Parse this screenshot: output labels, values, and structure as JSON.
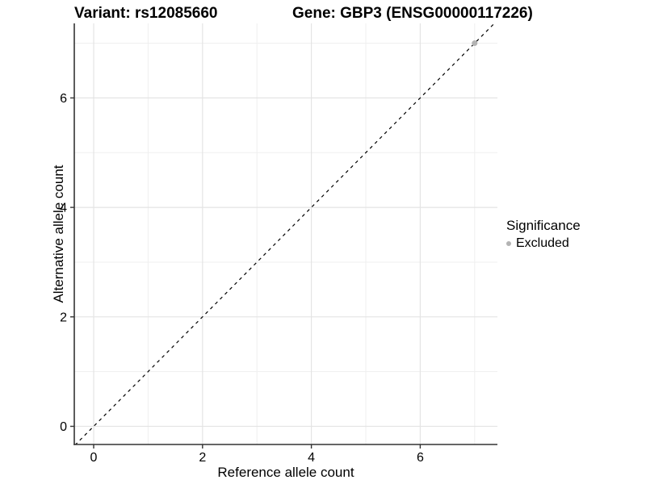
{
  "header": {
    "variant_title": "Variant: rs12085660",
    "gene_title": "Gene: GBP3 (ENSG00000117226)"
  },
  "axes": {
    "x": {
      "label": "Reference allele count",
      "tick_labels": [
        "0",
        "2",
        "4",
        "6"
      ]
    },
    "y": {
      "label": "Alternative allele count",
      "tick_labels": [
        "0",
        "2",
        "4",
        "6"
      ]
    }
  },
  "legend": {
    "title": "Significance",
    "items": [
      {
        "label": "Excluded",
        "marker_color": "#B3B3B3"
      }
    ]
  },
  "chart_data": {
    "type": "scatter",
    "title_left": "Variant: rs12085660",
    "title_right": "Gene: GBP3 (ENSG00000117226)",
    "xlabel": "Reference allele count",
    "ylabel": "Alternative allele count",
    "xlim": [
      -0.35,
      7.45
    ],
    "ylim": [
      -0.37,
      7.35
    ],
    "x_major_ticks": [
      0,
      2,
      4,
      6
    ],
    "y_major_ticks": [
      0,
      2,
      4,
      6
    ],
    "x_minor_gridlines": [
      1,
      3,
      5,
      7
    ],
    "y_minor_gridlines": [
      1,
      3,
      5,
      7
    ],
    "grid": "on",
    "legend_position": "right",
    "series": [
      {
        "name": "Excluded",
        "color": "#B3B3B3",
        "points": [
          {
            "x": 7,
            "y": 7
          }
        ]
      }
    ],
    "reference_line": {
      "type": "identity",
      "equation": "y = x",
      "style": "dashed",
      "color": "#000000"
    },
    "colors": {
      "grid_major": "#E4E4E4",
      "grid_minor": "#EFEFEF",
      "axis_line": "#333333",
      "tick_text": "#000000"
    }
  }
}
